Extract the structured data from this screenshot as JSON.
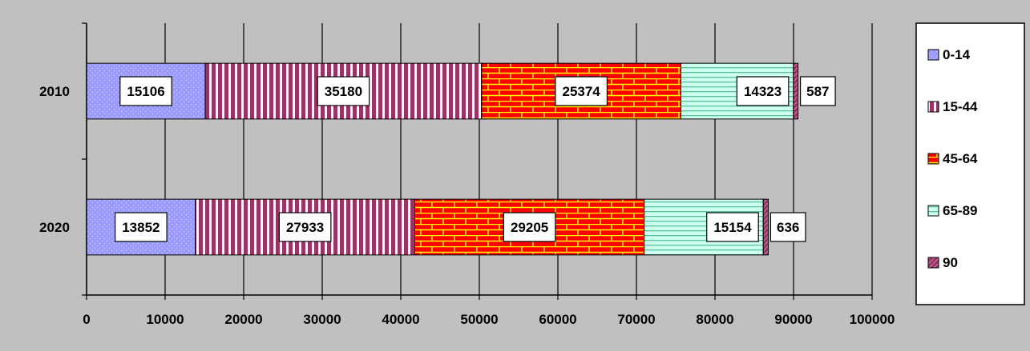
{
  "chart_data": {
    "type": "bar",
    "orientation": "horizontal",
    "stacked": true,
    "title": "",
    "xlabel": "",
    "ylabel": "",
    "xlim": [
      0,
      100000
    ],
    "x_ticks": [
      "0",
      "10000",
      "20000",
      "30000",
      "40000",
      "50000",
      "60000",
      "70000",
      "80000",
      "90000",
      "100000"
    ],
    "categories": [
      "2010",
      "2020"
    ],
    "series": [
      {
        "name": "0-14",
        "values": [
          15106,
          13852
        ],
        "color": "#9999ff",
        "pattern": "dots"
      },
      {
        "name": "15-44",
        "values": [
          35180,
          27933
        ],
        "color": "#993366",
        "pattern": "vertical-lines"
      },
      {
        "name": "45-64",
        "values": [
          25374,
          29205
        ],
        "color": "#ff0000",
        "pattern": "bricks"
      },
      {
        "name": "65-89",
        "values": [
          14323,
          15154
        ],
        "color": "#ccffee",
        "pattern": "horizontal-lines"
      },
      {
        "name": "90",
        "values": [
          587,
          636
        ],
        "color": "#993366",
        "pattern": "diagonal"
      }
    ],
    "grid": "vertical",
    "legend_position": "right",
    "plot_background": "#c0c0c0"
  }
}
